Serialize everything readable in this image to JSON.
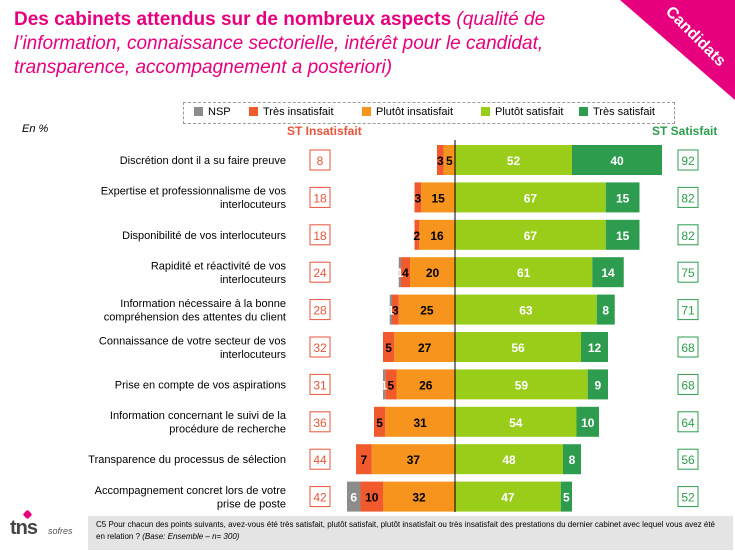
{
  "title": {
    "main": "Des cabinets attendus sur de nombreux aspects",
    "sub": "(qualité de l’information, connaissance sectorielle, intérêt pour le candidat, transparence, accompagnement a posteriori)"
  },
  "corner_label": "Candidats",
  "en_pct": "En %",
  "st_insatisfait_label": "ST Insatisfait",
  "st_satisfait_label": "ST Satisfait",
  "footnote": {
    "text": "C5 Pour chacun des points suivants, avez-vous été très satisfait,  plutôt satisfait,  plutôt insatisfait ou très insatisfait des prestations du dernier cabinet avec lequel vous avez été en relation ?",
    "base": "(Base: Ensemble – n= 300)"
  },
  "logo": {
    "main": "tns",
    "sub": "sofres"
  },
  "colors": {
    "title": "#e6007e",
    "nsp": "#8c8c8c",
    "tres_insatisfait": "#f05a2c",
    "plutot_insatisfait": "#f7941d",
    "plutot_satisfait": "#9acd1a",
    "tres_satisfait": "#2e9c4f",
    "st_insatisfait_box": "#e8543a",
    "st_satisfait_box": "#2e9c4f"
  },
  "chart_data": {
    "type": "bar",
    "orientation": "horizontal-diverging",
    "legend": [
      "NSP",
      "Très insatisfait",
      "Plutôt  insatisfait",
      "Plutôt satisfait",
      "Très satisfait"
    ],
    "categories": [
      "Discrétion dont il a su faire preuve",
      "Expertise et professionnalisme de vos interlocuteurs",
      "Disponibilité de vos interlocuteurs",
      "Rapidité et réactivité de vos interlocuteurs",
      "Information nécessaire à la bonne compréhension des attentes du client",
      "Connaissance de votre secteur de vos interlocuteurs",
      "Prise en compte de vos aspirations",
      "Information concernant le suivi de la procédure de recherche",
      "Transparence du processus de sélection",
      "Accompagnement concret lors de votre prise de poste"
    ],
    "series": [
      {
        "name": "NSP",
        "values": [
          0,
          0,
          0,
          1,
          1,
          0,
          1,
          0,
          0,
          6
        ]
      },
      {
        "name": "Très insatisfait",
        "values": [
          3,
          3,
          2,
          4,
          3,
          5,
          5,
          5,
          7,
          10
        ]
      },
      {
        "name": "Plutôt  insatisfait",
        "values": [
          5,
          15,
          16,
          20,
          25,
          27,
          26,
          31,
          37,
          32
        ]
      },
      {
        "name": "Plutôt satisfait",
        "values": [
          52,
          67,
          67,
          61,
          63,
          56,
          59,
          54,
          48,
          47
        ]
      },
      {
        "name": "Très satisfait",
        "values": [
          40,
          15,
          15,
          14,
          8,
          12,
          9,
          10,
          8,
          5
        ]
      }
    ],
    "st_insatisfait": [
      8,
      18,
      18,
      24,
      28,
      32,
      31,
      36,
      44,
      42
    ],
    "st_satisfait": [
      92,
      82,
      82,
      75,
      71,
      68,
      68,
      64,
      56,
      52
    ]
  }
}
